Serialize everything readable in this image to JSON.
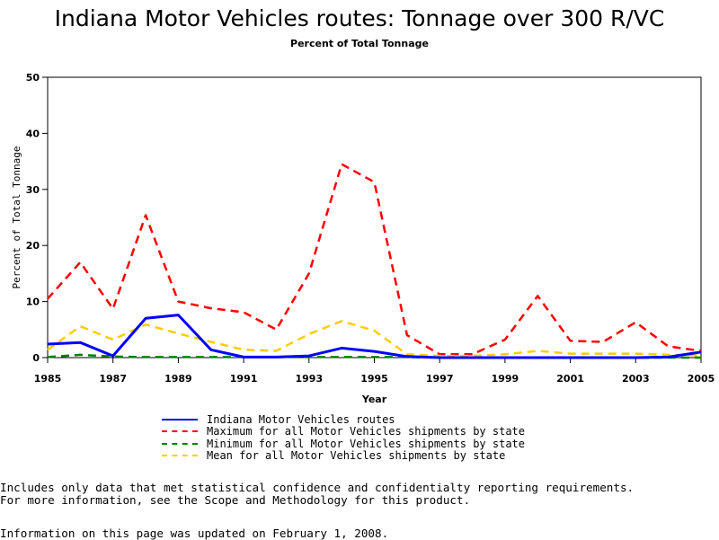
{
  "chart_data": {
    "type": "line",
    "title": "Indiana Motor Vehicles routes: Tonnage over 300 R/VC",
    "subtitle": "Percent of Total Tonnage",
    "xlabel": "Year",
    "ylabel": "Percent of Total Tonnage",
    "xlim": [
      1985,
      2005
    ],
    "ylim": [
      0,
      50
    ],
    "x_ticks": [
      1985,
      1987,
      1989,
      1991,
      1993,
      1995,
      1997,
      1999,
      2001,
      2003,
      2005
    ],
    "y_ticks": [
      0,
      10,
      20,
      30,
      40,
      50
    ],
    "grid": false,
    "legend_position": "bottom",
    "x": [
      1985,
      1986,
      1987,
      1988,
      1989,
      1990,
      1991,
      1992,
      1993,
      1994,
      1995,
      1996,
      1997,
      1998,
      1999,
      2000,
      2001,
      2002,
      2003,
      2004,
      2005
    ],
    "series": [
      {
        "name": "Indiana Motor Vehicles routes",
        "color": "#0000ff",
        "style": "solid",
        "values": [
          2.4,
          2.7,
          0.3,
          7.0,
          7.6,
          1.4,
          0.1,
          0.1,
          0.3,
          1.7,
          1.1,
          0.2,
          0.0,
          0.0,
          0.0,
          0.0,
          0.0,
          0.0,
          0.0,
          0.1,
          1.0
        ]
      },
      {
        "name": "Maximum for all Motor Vehicles shipments by state",
        "color": "#ff0000",
        "style": "dashed",
        "values": [
          10.5,
          17.0,
          8.7,
          25.4,
          10.0,
          8.8,
          8.1,
          5.0,
          15.0,
          34.5,
          31.3,
          4.0,
          0.6,
          0.6,
          3.2,
          11.0,
          3.0,
          2.8,
          6.3,
          2.0,
          1.2
        ]
      },
      {
        "name": "Minimum for all Motor Vehicles shipments by state",
        "color": "#008000",
        "style": "dashed",
        "values": [
          0.1,
          0.5,
          0.2,
          0.1,
          0.1,
          0.1,
          0.1,
          0.1,
          0.1,
          0.1,
          0.1,
          0.1,
          0.0,
          0.0,
          0.0,
          0.0,
          0.0,
          0.0,
          0.0,
          0.0,
          0.0
        ]
      },
      {
        "name": "Mean for all Motor Vehicles shipments by state",
        "color": "#ffcc00",
        "style": "dashed",
        "values": [
          1.4,
          5.6,
          3.2,
          5.9,
          4.3,
          2.8,
          1.4,
          1.2,
          4.2,
          6.5,
          4.8,
          0.6,
          0.3,
          0.3,
          0.6,
          1.2,
          0.7,
          0.7,
          0.7,
          0.5,
          0.4
        ]
      }
    ]
  },
  "notes": {
    "line1": "Includes only data that met statistical confidence and confidentialty reporting requirements.",
    "line2": "For more information, see the Scope and Methodology for this product.",
    "updated": "Information on this page was updated on February 1, 2008."
  }
}
